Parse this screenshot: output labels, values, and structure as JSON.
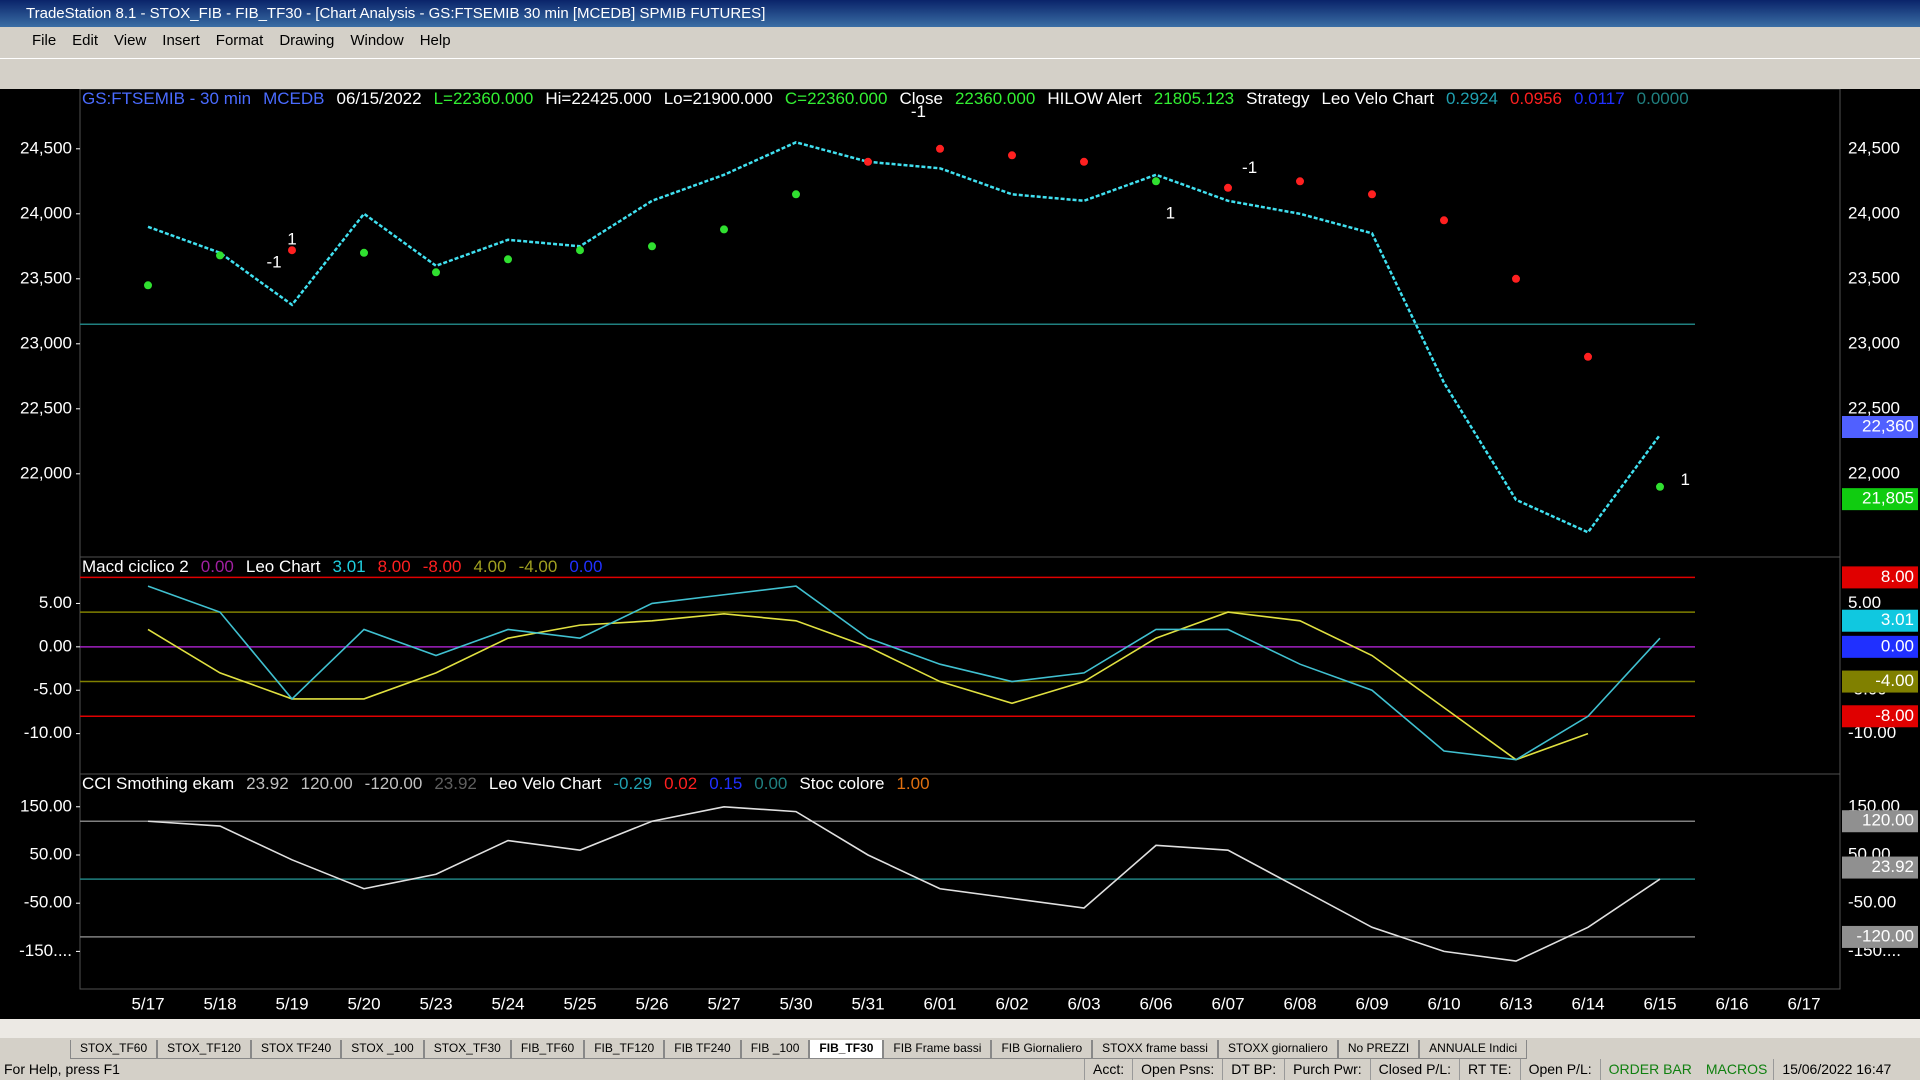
{
  "window": {
    "title": "TradeStation 8.1 - STOX_FIB - FIB_TF30 - [Chart Analysis - GS:FTSEMIB  30 min  [MCEDB] SPMIB FUTURES]",
    "menu": [
      "File",
      "Edit",
      "View",
      "Insert",
      "Format",
      "Drawing",
      "Window",
      "Help"
    ]
  },
  "chart_data": [
    {
      "type": "line",
      "header": [
        {
          "text": "GS:FTSEMIB - 30 min",
          "color": "#4a6bff"
        },
        {
          "text": "MCEDB",
          "color": "#4a6bff"
        },
        {
          "text": "06/15/2022",
          "color": "#ffffff"
        },
        {
          "text": "L=22360.000",
          "color": "#33ee33"
        },
        {
          "text": "Hi=22425.000",
          "color": "#ffffff"
        },
        {
          "text": "Lo=21900.000",
          "color": "#ffffff"
        },
        {
          "text": "C=22360.000",
          "color": "#33ee33"
        },
        {
          "text": "Close",
          "color": "#ffffff"
        },
        {
          "text": "22360.000",
          "color": "#33ee33"
        },
        {
          "text": "HILOW Alert",
          "color": "#ffffff"
        },
        {
          "text": "21805.123",
          "color": "#33ee33"
        },
        {
          "text": "Strategy",
          "color": "#ffffff"
        },
        {
          "text": "Leo Velo Chart",
          "color": "#ffffff"
        },
        {
          "text": "0.2924",
          "color": "#20a0b0"
        },
        {
          "text": "0.0956",
          "color": "#ff2020"
        },
        {
          "text": "0.0117",
          "color": "#2030ff"
        },
        {
          "text": "0.0000",
          "color": "#208080"
        }
      ],
      "categories": [
        "5/17",
        "5/18",
        "5/19",
        "5/20",
        "5/23",
        "5/24",
        "5/25",
        "5/26",
        "5/27",
        "5/30",
        "5/31",
        "6/01",
        "6/02",
        "6/03",
        "6/06",
        "6/07",
        "6/08",
        "6/09",
        "6/10",
        "6/13",
        "6/14",
        "6/15",
        "6/16",
        "6/17"
      ],
      "series": [
        {
          "name": "Close",
          "color": "#40e0f0",
          "values": [
            23900,
            23700,
            23300,
            24000,
            23600,
            23800,
            23750,
            24100,
            24300,
            24550,
            24400,
            24350,
            24150,
            24100,
            24300,
            24100,
            24000,
            23850,
            22700,
            21800,
            21550,
            22300,
            null,
            null
          ]
        },
        {
          "name": "HILOW Alert",
          "color": "#ff2020",
          "values": [
            23450,
            23680,
            23720,
            23700,
            23550,
            23650,
            23720,
            23750,
            23880,
            24150,
            24400,
            24500,
            24450,
            24400,
            24250,
            24200,
            24250,
            24150,
            23950,
            23500,
            22900,
            21900,
            null,
            null
          ]
        }
      ],
      "ylim": [
        21360,
        24960
      ],
      "yticks": [
        {
          "value": 24500,
          "label": "24,500"
        },
        {
          "value": 24000,
          "label": "24,000"
        },
        {
          "value": 23500,
          "label": "23,500"
        },
        {
          "value": 23000,
          "label": "23,000"
        },
        {
          "value": 22500,
          "label": "22,500"
        },
        {
          "value": 22000,
          "label": "22,000"
        }
      ],
      "levels": [
        {
          "value": 23150,
          "color": "#208080"
        }
      ],
      "markers": [
        {
          "value": 22360,
          "label": "22,360",
          "color": "#5060ff"
        },
        {
          "value": 21805,
          "label": "21,805",
          "color": "#10cc10"
        }
      ],
      "annotations": [
        {
          "label": "-1",
          "x": 1.75,
          "y": 23620
        },
        {
          "label": "1",
          "x": 2.0,
          "y": 23800
        },
        {
          "label": "-1",
          "x": 10.7,
          "y": 24780
        },
        {
          "label": "1",
          "x": 14.2,
          "y": 24000
        },
        {
          "label": "-1",
          "x": 15.3,
          "y": 24350
        },
        {
          "label": "1",
          "x": 21.35,
          "y": 21950
        }
      ]
    },
    {
      "type": "line",
      "header": [
        {
          "text": "Macd ciclico 2",
          "color": "#ffffff"
        },
        {
          "text": "0.00",
          "color": "#a020a0"
        },
        {
          "text": "Leo Chart",
          "color": "#ffffff"
        },
        {
          "text": "3.01",
          "color": "#20d0e0"
        },
        {
          "text": "8.00",
          "color": "#ff2020"
        },
        {
          "text": "-8.00",
          "color": "#ff2020"
        },
        {
          "text": "4.00",
          "color": "#a0a020"
        },
        {
          "text": "-4.00",
          "color": "#a0a020"
        },
        {
          "text": "0.00",
          "color": "#2030ff"
        }
      ],
      "series": [
        {
          "name": "Macd ciclico 2",
          "color": "#e0e040",
          "values": [
            2,
            -3,
            -6,
            -6,
            -3,
            1,
            2.5,
            3,
            3.8,
            3,
            0,
            -4,
            -6.5,
            -4,
            1,
            4,
            3,
            -1,
            -7,
            -13,
            -10,
            null,
            null,
            null
          ]
        },
        {
          "name": "Leo Chart",
          "color": "#40c0d0",
          "values": [
            7,
            4,
            -6,
            2,
            -1,
            2,
            1,
            5,
            6,
            7,
            1,
            -2,
            -4,
            -3,
            2,
            2,
            -2,
            -5,
            -12,
            -13,
            -8,
            1,
            null,
            null
          ]
        }
      ],
      "ylim": [
        -14.65,
        10.35
      ],
      "yticks": [
        {
          "value": 5,
          "label": "5.00"
        },
        {
          "value": 0,
          "label": "0.00"
        },
        {
          "value": -5,
          "label": "-5.00"
        },
        {
          "value": -10,
          "label": "-10.00"
        }
      ],
      "levels": [
        {
          "value": 8,
          "color": "#e00000"
        },
        {
          "value": 4,
          "color": "#808000"
        },
        {
          "value": 0,
          "color": "#a020c0"
        },
        {
          "value": -4,
          "color": "#808000"
        },
        {
          "value": -8,
          "color": "#e00000"
        }
      ],
      "markers": [
        {
          "value": 8,
          "label": "8.00",
          "color": "#e00000"
        },
        {
          "value": 3.01,
          "label": "3.01",
          "color": "#10c8e0"
        },
        {
          "value": 0,
          "label": "0.00",
          "color": "#2030ff"
        },
        {
          "value": -4,
          "label": "-4.00",
          "color": "#808000"
        },
        {
          "value": -8,
          "label": "-8.00",
          "color": "#e00000"
        }
      ]
    },
    {
      "type": "line",
      "header": [
        {
          "text": "CCI Smothing ekam",
          "color": "#ffffff"
        },
        {
          "text": "23.92",
          "color": "#c0c0c0"
        },
        {
          "text": "120.00",
          "color": "#c0c0c0"
        },
        {
          "text": "-120.00",
          "color": "#c0c0c0"
        },
        {
          "text": "23.92",
          "color": "#606060"
        },
        {
          "text": "Leo Velo Chart",
          "color": "#ffffff"
        },
        {
          "text": "-0.29",
          "color": "#20a0b0"
        },
        {
          "text": "0.02",
          "color": "#ff2020"
        },
        {
          "text": "0.15",
          "color": "#2030ff"
        },
        {
          "text": "0.00",
          "color": "#208080"
        },
        {
          "text": "Stoc colore",
          "color": "#ffffff"
        },
        {
          "text": "1.00",
          "color": "#e07010"
        }
      ],
      "series": [
        {
          "name": "CCI Smothing ekam",
          "color": "#e0e0e0",
          "values": [
            120,
            110,
            40,
            -20,
            10,
            80,
            60,
            120,
            150,
            140,
            50,
            -20,
            -40,
            -60,
            70,
            60,
            -20,
            -100,
            -150,
            -170,
            -100,
            0,
            null,
            null
          ]
        }
      ],
      "ylim": [
        -228,
        218
      ],
      "yticks": [
        {
          "value": 150,
          "label": "150.00"
        },
        {
          "value": 50,
          "label": "50.00"
        },
        {
          "value": -50,
          "label": "-50.00"
        },
        {
          "value": -150,
          "label": "-150...."
        }
      ],
      "levels": [
        {
          "value": 120,
          "color": "#808080"
        },
        {
          "value": 0,
          "color": "#208080"
        },
        {
          "value": -120,
          "color": "#808080"
        }
      ],
      "markers": [
        {
          "value": 120,
          "label": "120.00",
          "color": "#909090"
        },
        {
          "value": 23.92,
          "label": "23.92",
          "color": "#909090"
        },
        {
          "value": -120,
          "label": "-120.00",
          "color": "#909090"
        }
      ]
    }
  ],
  "tabs": [
    "STOX_TF60",
    "STOX_TF120",
    "STOX TF240",
    "STOX _100",
    "STOX_TF30",
    "FIB_TF60",
    "FIB_TF120",
    "FIB TF240",
    "FIB _100",
    "FIB_TF30",
    "FIB Frame bassi",
    "FIB Giornaliero",
    "STOXX frame bassi",
    "STOXX giornaliero",
    "No PREZZI",
    "ANNUALE Indici"
  ],
  "active_tab": 9,
  "status": {
    "help": "For Help, press F1",
    "fields": [
      "Acct:",
      "Open Psns:",
      "DT BP:",
      "Purch Pwr:",
      "Closed P/L:",
      "RT TE:",
      "Open P/L:"
    ],
    "order_bar": "ORDER BAR",
    "macros": "MACROS",
    "clock": "15/06/2022 16:47"
  }
}
